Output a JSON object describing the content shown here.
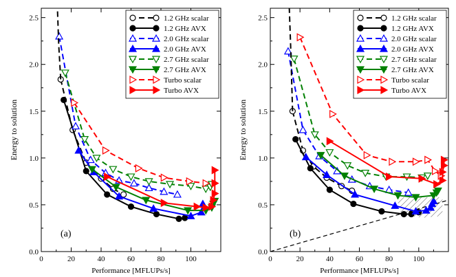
{
  "chart_data": [
    {
      "type": "line",
      "panel_label": "(a)",
      "xlabel": "Performance [MFLUPs/s]",
      "ylabel": "Energy to solution",
      "xlim": [
        0,
        120
      ],
      "ylim": [
        0,
        2.6
      ],
      "xticks": [
        0,
        20,
        40,
        60,
        80,
        100
      ],
      "yticks": [
        0.0,
        0.5,
        1.0,
        1.5,
        2.0,
        2.5
      ],
      "ytick_labels": [
        "0.0",
        "0.5",
        "1.0",
        "1.5",
        "2.0",
        "2.5"
      ],
      "legend_position": "top-right",
      "series": [
        {
          "name": "1.2 GHz scalar",
          "color": "#000000",
          "dashed": true,
          "marker": "circle-open",
          "x": [
            13,
            21,
            30,
            40,
            48,
            55
          ],
          "y": [
            1.84,
            1.3,
            0.95,
            0.78,
            0.67,
            0.61
          ]
        },
        {
          "name": "1.2 GHz AVX",
          "color": "#000000",
          "dashed": false,
          "marker": "circle-filled",
          "x": [
            15,
            30,
            44,
            60,
            77,
            92,
            96
          ],
          "y": [
            1.62,
            0.86,
            0.61,
            0.48,
            0.4,
            0.35,
            0.36
          ]
        },
        {
          "name": "2.0 GHz scalar",
          "color": "#0000ff",
          "dashed": true,
          "marker": "triangle-up-open",
          "x": [
            12,
            23,
            33,
            43,
            52,
            62,
            72,
            82,
            91
          ],
          "y": [
            2.3,
            1.34,
            0.98,
            0.84,
            0.76,
            0.73,
            0.68,
            0.64,
            0.61
          ]
        },
        {
          "name": "2.0 GHz AVX",
          "color": "#0000ff",
          "dashed": false,
          "marker": "triangle-up-filled",
          "x": [
            25,
            35,
            52,
            75,
            100,
            107,
            108
          ],
          "y": [
            1.08,
            0.85,
            0.59,
            0.46,
            0.38,
            0.42,
            0.51
          ]
        },
        {
          "name": "2.7 GHz scalar",
          "color": "#008000",
          "dashed": true,
          "marker": "triangle-down-open",
          "x": [
            16,
            29,
            37,
            48,
            60,
            72,
            86,
            100,
            110,
            113,
            114
          ],
          "y": [
            1.91,
            1.2,
            1.0,
            0.88,
            0.8,
            0.75,
            0.72,
            0.7,
            0.67,
            0.69,
            0.72
          ]
        },
        {
          "name": "2.7 GHz AVX",
          "color": "#008000",
          "dashed": false,
          "marker": "triangle-down-filled",
          "x": [
            34,
            50,
            70,
            98,
            110,
            114,
            115,
            116
          ],
          "y": [
            0.88,
            0.69,
            0.55,
            0.44,
            0.44,
            0.47,
            0.51,
            0.54
          ]
        },
        {
          "name": "Turbo scalar",
          "color": "#ff0000",
          "dashed": true,
          "marker": "triangle-right-open",
          "x": [
            22,
            43,
            65,
            82,
            99,
            110,
            116
          ],
          "y": [
            1.59,
            1.08,
            0.89,
            0.79,
            0.75,
            0.73,
            0.73
          ]
        },
        {
          "name": "Turbo AVX",
          "color": "#ff0000",
          "dashed": false,
          "marker": "triangle-right-filled",
          "x": [
            44,
            82,
            104,
            110,
            114,
            115,
            116,
            116,
            116
          ],
          "y": [
            0.8,
            0.52,
            0.48,
            0.47,
            0.48,
            0.55,
            0.62,
            0.73,
            0.87
          ]
        }
      ]
    },
    {
      "type": "line",
      "panel_label": "(b)",
      "xlabel": "Performance [MFLUPs/s]",
      "ylabel": "Energy to solution",
      "xlim": [
        0,
        120
      ],
      "ylim": [
        0,
        2.6
      ],
      "xticks": [
        0,
        20,
        40,
        60,
        80,
        100
      ],
      "yticks": [
        0.0,
        0.5,
        1.0,
        1.5,
        2.0,
        2.5
      ],
      "ytick_labels": [
        "0.0",
        "0.5",
        "1.0",
        "1.5",
        "2.0",
        "2.5"
      ],
      "legend_position": "top-right",
      "series": [
        {
          "name": "1.2 GHz scalar",
          "color": "#000000",
          "dashed": true,
          "marker": "circle-open",
          "x": [
            15,
            22,
            29,
            38,
            48,
            55
          ],
          "y": [
            1.5,
            1.08,
            0.91,
            0.79,
            0.7,
            0.65
          ]
        },
        {
          "name": "1.2 GHz AVX",
          "color": "#000000",
          "dashed": false,
          "marker": "circle-filled",
          "x": [
            17,
            27,
            40,
            56,
            75,
            90,
            95,
            100
          ],
          "y": [
            1.2,
            0.89,
            0.66,
            0.51,
            0.43,
            0.4,
            0.4,
            0.42
          ]
        },
        {
          "name": "2.0 GHz scalar",
          "color": "#0000ff",
          "dashed": true,
          "marker": "triangle-up-open",
          "x": [
            12,
            22,
            33,
            45,
            55,
            67,
            80,
            93
          ],
          "y": [
            2.14,
            1.3,
            1.02,
            0.86,
            0.77,
            0.7,
            0.66,
            0.63
          ]
        },
        {
          "name": "2.0 GHz AVX",
          "color": "#0000ff",
          "dashed": false,
          "marker": "triangle-up-filled",
          "x": [
            24,
            38,
            57,
            84,
            98,
            105,
            108,
            109,
            110
          ],
          "y": [
            1.01,
            0.82,
            0.61,
            0.49,
            0.43,
            0.44,
            0.47,
            0.51,
            0.54
          ]
        },
        {
          "name": "2.7 GHz scalar",
          "color": "#008000",
          "dashed": true,
          "marker": "triangle-down-open",
          "x": [
            16,
            30,
            40,
            52,
            64,
            78,
            92,
            102,
            106
          ],
          "y": [
            2.06,
            1.25,
            1.06,
            0.92,
            0.84,
            0.8,
            0.8,
            0.79,
            0.81
          ]
        },
        {
          "name": "2.7 GHz AVX",
          "color": "#008000",
          "dashed": false,
          "marker": "triangle-down-filled",
          "x": [
            34,
            50,
            70,
            86,
            98,
            110,
            112,
            113
          ],
          "y": [
            1.03,
            0.81,
            0.67,
            0.6,
            0.58,
            0.6,
            0.63,
            0.65
          ]
        },
        {
          "name": "Turbo scalar",
          "color": "#ff0000",
          "dashed": true,
          "marker": "triangle-right-open",
          "x": [
            20,
            42,
            65,
            82,
            98,
            106,
            111,
            115
          ],
          "y": [
            2.29,
            1.47,
            1.03,
            0.96,
            0.96,
            0.98,
            0.86,
            0.81
          ]
        },
        {
          "name": "Turbo AVX",
          "color": "#ff0000",
          "dashed": false,
          "marker": "triangle-right-filled",
          "x": [
            40,
            80,
            102,
            112,
            116,
            116,
            117,
            117
          ],
          "y": [
            1.18,
            0.8,
            0.78,
            0.72,
            0.76,
            0.85,
            0.92,
            0.98
          ]
        }
      ]
    }
  ]
}
